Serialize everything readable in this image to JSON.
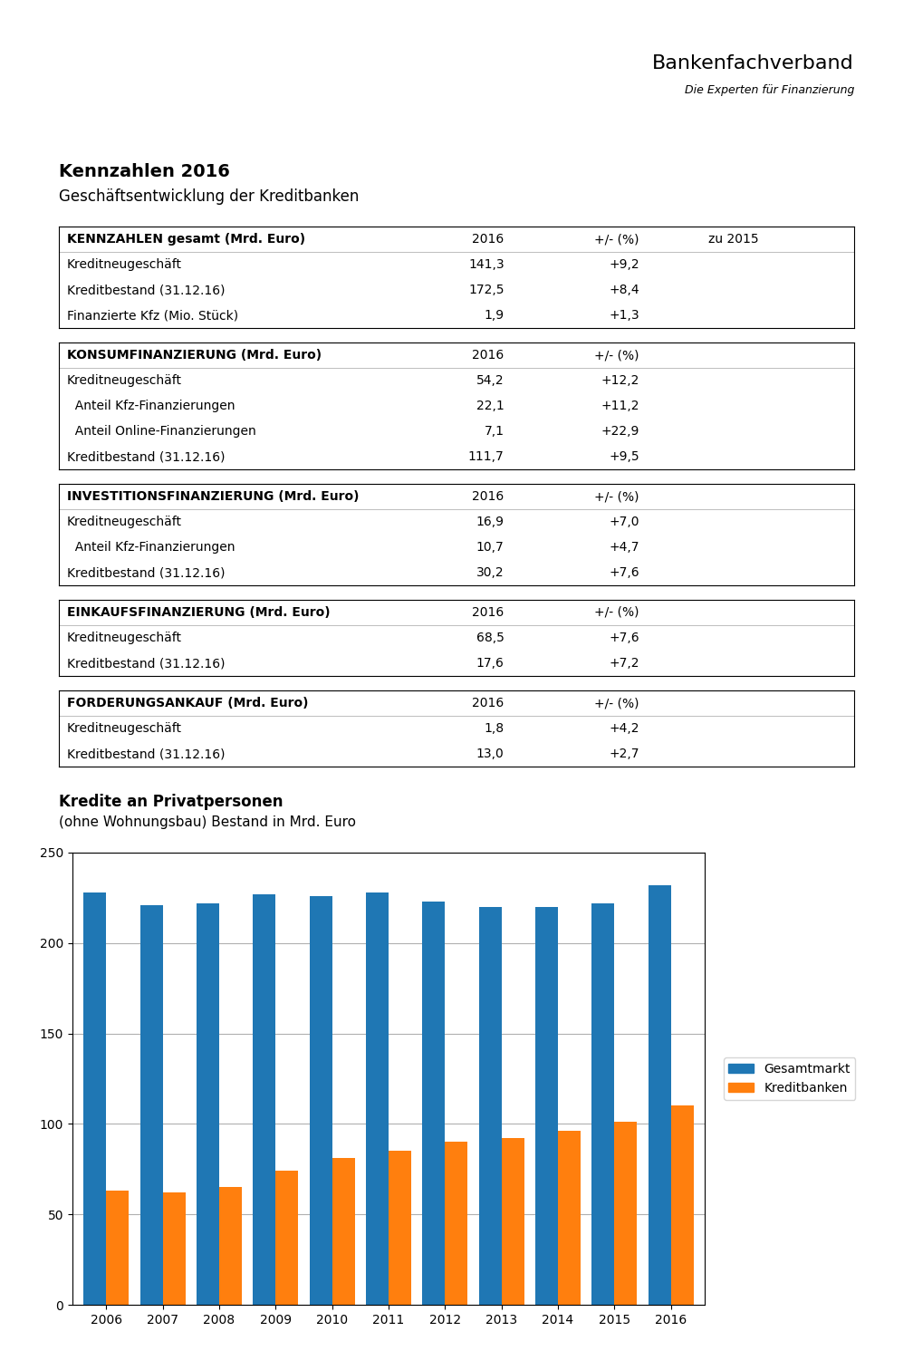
{
  "title": "Kennzahlen 2016",
  "subtitle": "Geschäftsentwicklung der Kreditbanken",
  "annotations": [
    "Bankenfachverband",
    "Die Experten für Finanzierung"
  ],
  "chart_data": [
    {
      "type": "table",
      "columns": [
        "KENNZAHLEN gesamt (Mrd. Euro)",
        "2016",
        "+/- (%)",
        "zu 2015"
      ],
      "rows": [
        [
          "Kreditneugeschäft",
          "141,3",
          "+9,2"
        ],
        [
          "Kreditbestand (31.12.16)",
          "172,5",
          "+8,4"
        ],
        [
          "Finanzierte Kfz (Mio. Stück)",
          "1,9",
          "+1,3"
        ]
      ]
    },
    {
      "type": "table",
      "columns": [
        "KONSUMFINANZIERUNG (Mrd. Euro)",
        "2016",
        "+/- (%)"
      ],
      "rows": [
        [
          "Kreditneugeschäft",
          "54,2",
          "+12,2"
        ],
        [
          "  Anteil Kfz-Finanzierungen",
          "22,1",
          "+11,2"
        ],
        [
          "  Anteil Online-Finanzierungen",
          "7,1",
          "+22,9"
        ],
        [
          "Kreditbestand (31.12.16)",
          "111,7",
          "+9,5"
        ]
      ]
    },
    {
      "type": "table",
      "columns": [
        "INVESTITIONSFINANZIERUNG (Mrd. Euro)",
        "2016",
        "+/- (%)"
      ],
      "rows": [
        [
          "Kreditneugeschäft",
          "16,9",
          "+7,0"
        ],
        [
          "  Anteil Kfz-Finanzierungen",
          "10,7",
          "+4,7"
        ],
        [
          "Kreditbestand (31.12.16)",
          "30,2",
          "+7,6"
        ]
      ]
    },
    {
      "type": "table",
      "columns": [
        "EINKAUFSFINANZIERUNG (Mrd. Euro)",
        "2016",
        "+/- (%)"
      ],
      "rows": [
        [
          "Kreditneugeschäft",
          "68,5",
          "+7,6"
        ],
        [
          "Kreditbestand (31.12.16)",
          "17,6",
          "+7,2"
        ]
      ]
    },
    {
      "type": "table",
      "columns": [
        "FORDERUNGSANKAUF (Mrd. Euro)",
        "2016",
        "+/- (%)"
      ],
      "rows": [
        [
          "Kreditneugeschäft",
          "1,8",
          "+4,2"
        ],
        [
          "Kreditbestand (31.12.16)",
          "13,0",
          "+2,7"
        ]
      ]
    },
    {
      "type": "bar",
      "title": "Kredite an Privatpersonen",
      "subtitle": "(ohne Wohnungsbau) Bestand in Mrd. Euro",
      "categories": [
        "2006",
        "2007",
        "2008",
        "2009",
        "2010",
        "2011",
        "2012",
        "2013",
        "2014",
        "2015",
        "2016"
      ],
      "series": [
        {
          "name": "Gesamtmarkt",
          "values": [
            228,
            221,
            222,
            227,
            226,
            228,
            223,
            220,
            220,
            222,
            232
          ]
        },
        {
          "name": "Kreditbanken",
          "values": [
            63,
            62,
            65,
            74,
            81,
            85,
            90,
            92,
            96,
            101,
            110
          ]
        }
      ],
      "ylim": [
        0,
        250
      ],
      "yticks": [
        0,
        50,
        100,
        150,
        200,
        250
      ],
      "grid": true,
      "legend": "right"
    }
  ]
}
